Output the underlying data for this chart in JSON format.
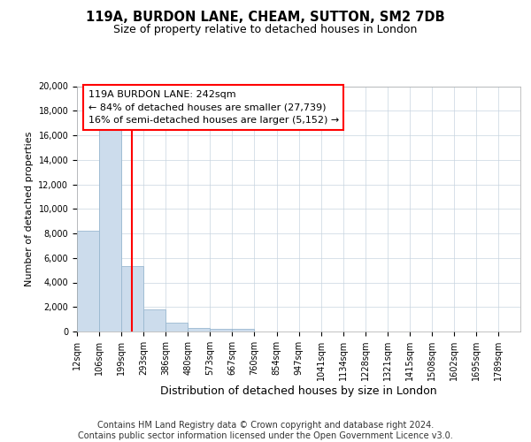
{
  "title": "119A, BURDON LANE, CHEAM, SUTTON, SM2 7DB",
  "subtitle": "Size of property relative to detached houses in London",
  "xlabel": "Distribution of detached houses by size in London",
  "ylabel": "Number of detached properties",
  "footer_line1": "Contains HM Land Registry data © Crown copyright and database right 2024.",
  "footer_line2": "Contains public sector information licensed under the Open Government Licence v3.0.",
  "bin_edges": [
    12,
    106,
    199,
    293,
    386,
    480,
    573,
    667,
    760,
    854,
    947,
    1041,
    1134,
    1228,
    1321,
    1415,
    1508,
    1602,
    1695,
    1789,
    1882
  ],
  "bar_heights": [
    8200,
    16600,
    5300,
    1800,
    750,
    300,
    250,
    200,
    0,
    0,
    0,
    0,
    0,
    0,
    0,
    0,
    0,
    0,
    0,
    0
  ],
  "bar_color": "#ccdcec",
  "bar_edge_color": "#9ab8d0",
  "property_line_x": 242,
  "property_line_color": "red",
  "annotation_line1": "119A BURDON LANE: 242sqm",
  "annotation_line2": "← 84% of detached houses are smaller (27,739)",
  "annotation_line3": "16% of semi-detached houses are larger (5,152) →",
  "ylim": [
    0,
    20000
  ],
  "yticks": [
    0,
    2000,
    4000,
    6000,
    8000,
    10000,
    12000,
    14000,
    16000,
    18000,
    20000
  ],
  "grid_color": "#c8d4e0",
  "background_color": "#ffffff",
  "title_fontsize": 10.5,
  "subtitle_fontsize": 9,
  "ylabel_fontsize": 8,
  "xlabel_fontsize": 9,
  "tick_fontsize": 7,
  "footer_fontsize": 7,
  "annot_fontsize": 8
}
